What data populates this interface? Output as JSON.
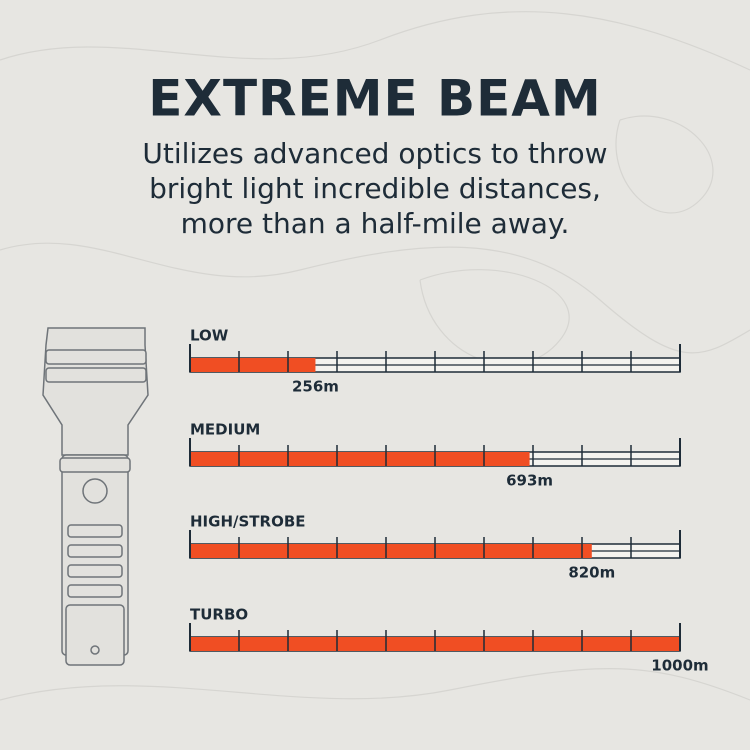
{
  "chart_data": {
    "type": "bar",
    "orientation": "horizontal",
    "title": "EXTREME BEAM",
    "subtitle": [
      "Utilizes advanced optics to throw",
      "bright light incredible distances,",
      "more than a half-mile away."
    ],
    "categories": [
      "LOW",
      "MEDIUM",
      "HIGH/STROBE",
      "TURBO"
    ],
    "values": [
      256,
      693,
      820,
      1000
    ],
    "value_labels": [
      "256m",
      "693m",
      "820m",
      "1000m"
    ],
    "color": "#f04e23",
    "xlim": [
      0,
      1000
    ],
    "xticks": [
      0,
      100,
      200,
      300,
      400,
      500,
      600,
      700,
      800,
      900,
      1000
    ]
  }
}
